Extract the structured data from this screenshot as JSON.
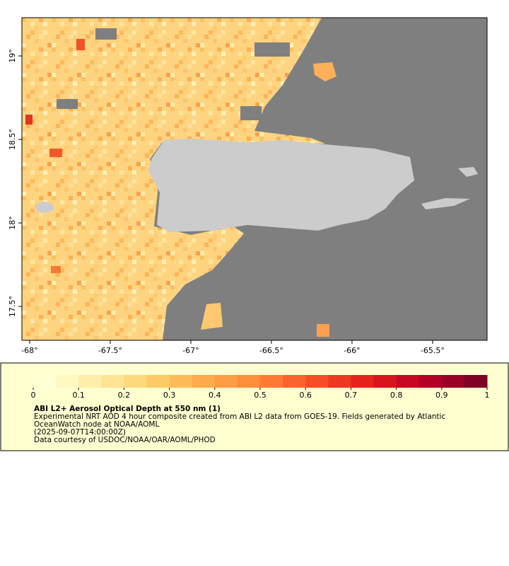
{
  "map": {
    "type": "map",
    "xlim": [
      -68.048,
      -65.162
    ],
    "ylim": [
      17.297,
      19.229
    ],
    "xticks": [
      {
        "value": -68,
        "label": "-68°"
      },
      {
        "value": -67.5,
        "label": "-67.5°"
      },
      {
        "value": -67,
        "label": "-67°"
      },
      {
        "value": -66.5,
        "label": "-66.5°"
      },
      {
        "value": -66,
        "label": "-66°"
      },
      {
        "value": -65.5,
        "label": "-65.5°"
      }
    ],
    "yticks": [
      {
        "value": 17.5,
        "label": "17.5°"
      },
      {
        "value": 18,
        "label": "18°"
      },
      {
        "value": 18.5,
        "label": "18.5°"
      },
      {
        "value": 19,
        "label": "19°"
      }
    ]
  },
  "colorbar": {
    "lim": [
      0,
      1
    ],
    "ticks": [
      0,
      0.1,
      0.2,
      0.3,
      0.4,
      0.5,
      0.6,
      0.7,
      0.8,
      0.9,
      1
    ],
    "colors": [
      "#ffffd4",
      "#fff8c0",
      "#ffefa8",
      "#fee594",
      "#fed97c",
      "#fecb68",
      "#febc58",
      "#feab4b",
      "#fd9d44",
      "#fd8e3c",
      "#fc7a35",
      "#fb632e",
      "#f64d28",
      "#ee3922",
      "#e5241e",
      "#d8141f",
      "#c70824",
      "#b40026",
      "#9a0026",
      "#800026"
    ]
  },
  "caption": {
    "title": "ABI L2+ Aerosol Optical Depth at 550 nm (1)",
    "lines": [
      "Experimental NRT AOD 4 hour composite created from ABI L2 data from GOES-19. Fields generated by Atlantic",
      "OceanWatch node at NOAA/AOML",
      "(2025-09-07T14:00:00Z)",
      "Data courtesy of USDOC/NOAA/OAR/AOML/PHOD"
    ]
  }
}
